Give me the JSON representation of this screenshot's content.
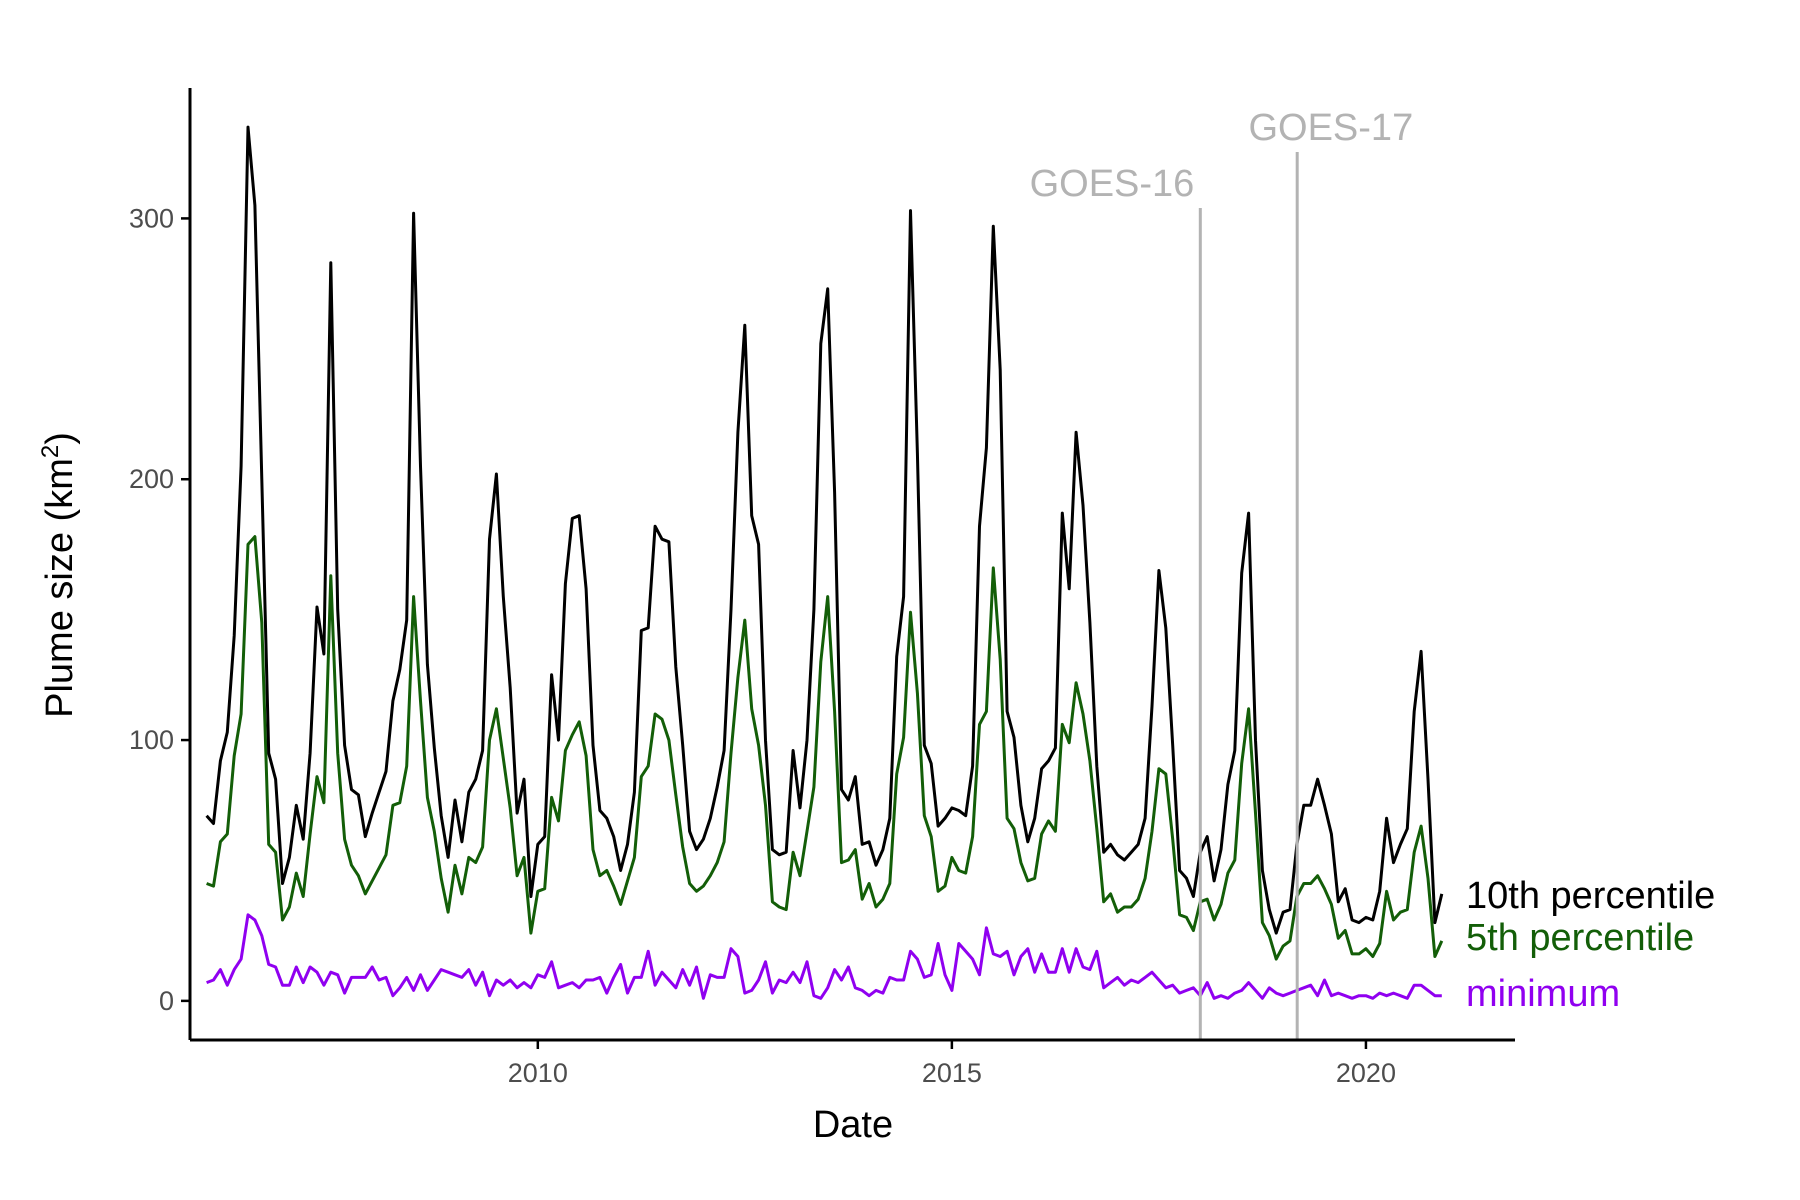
{
  "chart_data": {
    "type": "line",
    "xlabel": "Date",
    "ylabel": "Plume size (km",
    "ylabel_superscript": "2",
    "ylabel_suffix": ")",
    "xlim": [
      2005.8,
      2021.8
    ],
    "ylim": [
      -15,
      350
    ],
    "x_ticks": [
      2010,
      2015,
      2020
    ],
    "x_tick_labels": [
      "2010",
      "2015",
      "2020"
    ],
    "y_ticks": [
      0,
      100,
      200,
      300
    ],
    "y_tick_labels": [
      "0",
      "100",
      "200",
      "300"
    ],
    "grid": false,
    "x_start": 2006.0,
    "x_step": 0.083333,
    "vertical_lines": [
      {
        "x": 2018.0,
        "label": "GOES-16",
        "color": "#b3b3b3"
      },
      {
        "x": 2019.17,
        "label": "GOES-17",
        "color": "#b3b3b3"
      }
    ],
    "series": [
      {
        "name": "10th percentile",
        "color": "#000000",
        "values": [
          71,
          68,
          92,
          103,
          140,
          205,
          335,
          305,
          200,
          95,
          85,
          45,
          55,
          75,
          62,
          95,
          151,
          133,
          283,
          150,
          98,
          81,
          79,
          63,
          72,
          80,
          88,
          115,
          127,
          146,
          302,
          205,
          129,
          97,
          71,
          55,
          77,
          61,
          80,
          85,
          96,
          177,
          202,
          155,
          120,
          72,
          85,
          40,
          60,
          63,
          125,
          100,
          160,
          185,
          186,
          158,
          98,
          73,
          70,
          63,
          50,
          60,
          80,
          142,
          143,
          182,
          177,
          176,
          128,
          98,
          65,
          58,
          62,
          70,
          82,
          96,
          150,
          218,
          259,
          186,
          175,
          100,
          58,
          56,
          57,
          96,
          74,
          100,
          150,
          252,
          273,
          195,
          81,
          77,
          86,
          60,
          61,
          52,
          58,
          70,
          132,
          155,
          303,
          210,
          98,
          91,
          67,
          70,
          74,
          73,
          71,
          90,
          182,
          212,
          297,
          242,
          111,
          101,
          75,
          61,
          70,
          89,
          92,
          97,
          187,
          158,
          218,
          190,
          145,
          90,
          57,
          60,
          56,
          54,
          57,
          60,
          70,
          113,
          165,
          143,
          98,
          50,
          47,
          40,
          57,
          63,
          46,
          58,
          83,
          96,
          164,
          187,
          100,
          50,
          35,
          26,
          34,
          35,
          60,
          75,
          75,
          85,
          75,
          64,
          38,
          43,
          31,
          30,
          32,
          31,
          42,
          70,
          53,
          60,
          66,
          111,
          134,
          85,
          30,
          41
        ]
      },
      {
        "name": "5th percentile",
        "color": "#135e08",
        "values": [
          45,
          44,
          61,
          64,
          94,
          110,
          175,
          178,
          145,
          60,
          57,
          31,
          36,
          49,
          40,
          64,
          86,
          76,
          163,
          95,
          62,
          52,
          48,
          41,
          46,
          51,
          56,
          75,
          76,
          90,
          155,
          115,
          78,
          65,
          47,
          34,
          52,
          41,
          55,
          53,
          59,
          100,
          112,
          93,
          74,
          48,
          55,
          26,
          42,
          43,
          78,
          69,
          96,
          102,
          107,
          94,
          58,
          48,
          50,
          44,
          37,
          46,
          55,
          86,
          90,
          110,
          108,
          100,
          79,
          59,
          45,
          42,
          44,
          48,
          53,
          61,
          95,
          124,
          146,
          112,
          98,
          75,
          38,
          36,
          35,
          57,
          48,
          65,
          82,
          130,
          155,
          111,
          53,
          54,
          58,
          39,
          45,
          36,
          39,
          45,
          87,
          101,
          149,
          118,
          71,
          63,
          42,
          44,
          55,
          50,
          49,
          63,
          106,
          111,
          166,
          131,
          70,
          66,
          53,
          46,
          47,
          64,
          69,
          65,
          106,
          99,
          122,
          110,
          92,
          66,
          38,
          41,
          34,
          36,
          36,
          39,
          47,
          65,
          89,
          87,
          62,
          33,
          32,
          27,
          38,
          39,
          31,
          37,
          49,
          54,
          91,
          112,
          72,
          30,
          25,
          16,
          21,
          23,
          40,
          45,
          45,
          48,
          43,
          37,
          24,
          27,
          18,
          18,
          20,
          17,
          22,
          42,
          31,
          34,
          35,
          57,
          67,
          47,
          17,
          23
        ]
      },
      {
        "name": "minimum",
        "color": "#9000f0",
        "values": [
          7,
          8,
          12,
          6,
          12,
          16,
          33,
          31,
          25,
          14,
          13,
          6,
          6,
          13,
          7,
          13,
          11,
          6,
          11,
          10,
          3,
          9,
          9,
          9,
          13,
          8,
          9,
          2,
          5,
          9,
          4,
          10,
          4,
          8,
          12,
          11,
          10,
          9,
          12,
          6,
          11,
          2,
          8,
          6,
          8,
          5,
          7,
          5,
          10,
          9,
          15,
          5,
          6,
          7,
          5,
          8,
          8,
          9,
          3,
          9,
          14,
          3,
          9,
          9,
          19,
          6,
          11,
          8,
          5,
          12,
          6,
          13,
          1,
          10,
          9,
          9,
          20,
          17,
          3,
          4,
          8,
          15,
          3,
          8,
          7,
          11,
          7,
          15,
          2,
          1,
          5,
          12,
          8,
          13,
          5,
          4,
          2,
          4,
          3,
          9,
          8,
          8,
          19,
          16,
          9,
          10,
          22,
          10,
          4,
          22,
          19,
          16,
          10,
          28,
          18,
          17,
          19,
          10,
          17,
          20,
          11,
          18,
          11,
          11,
          20,
          11,
          20,
          13,
          12,
          19,
          5,
          7,
          9,
          6,
          8,
          7,
          9,
          11,
          8,
          5,
          6,
          3,
          4,
          5,
          2,
          7,
          1,
          2,
          1,
          3,
          4,
          7,
          4,
          1,
          5,
          3,
          2,
          3,
          4,
          5,
          6,
          2,
          8,
          2,
          3,
          2,
          1,
          2,
          2,
          1,
          3,
          2,
          3,
          2,
          1,
          6,
          6,
          4,
          2,
          2
        ]
      }
    ]
  }
}
